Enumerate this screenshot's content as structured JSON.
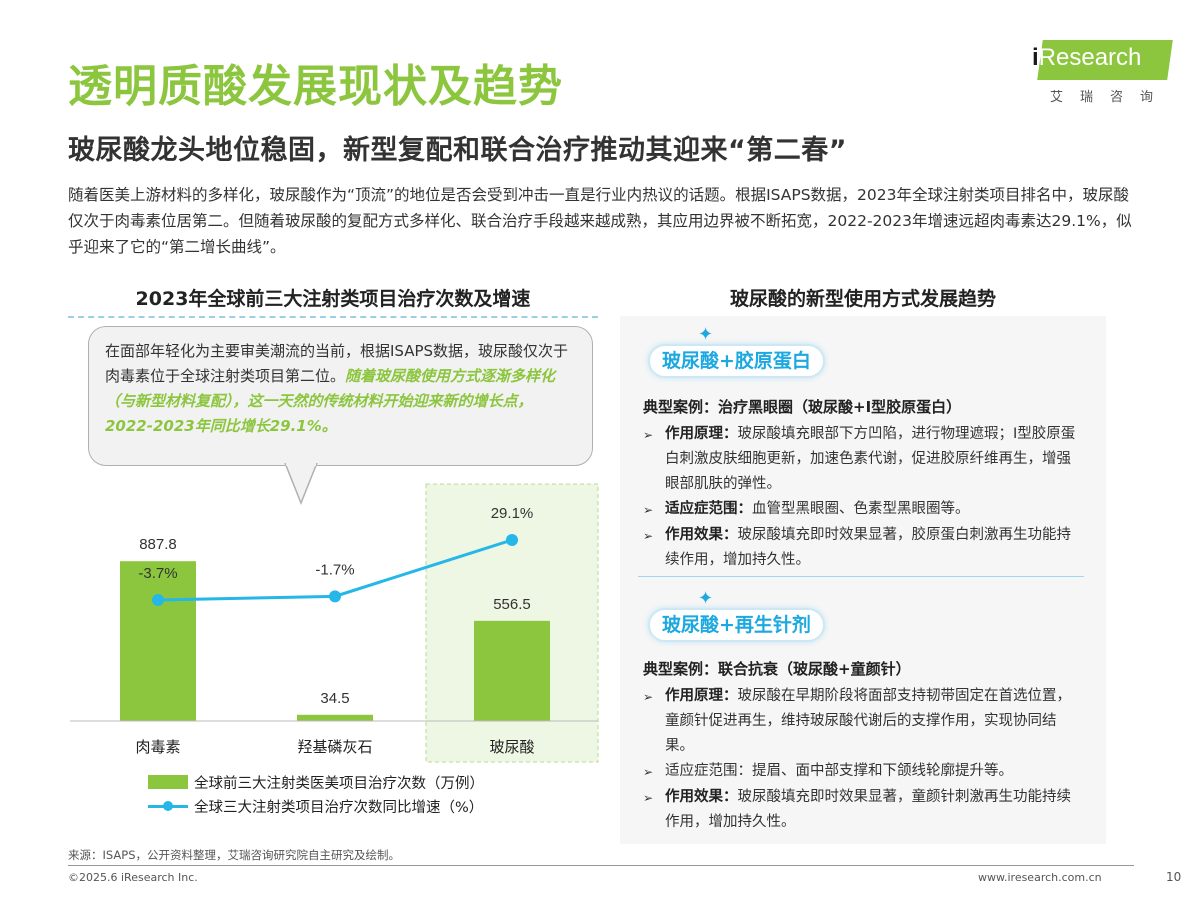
{
  "header": {
    "title": "透明质酸发展现状及趋势",
    "subtitle": "玻尿酸龙头地位稳固，新型复配和联合治疗推动其迎来“第二春”",
    "intro": "随着医美上游材料的多样化，玻尿酸作为“顶流”的地位是否会受到冲击一直是行业内热议的话题。根据ISAPS数据，2023年全球注射类项目排名中，玻尿酸仅次于肉毒素位居第二。但随着玻尿酸的复配方式多样化、联合治疗手段越来越成熟，其应用边界被不断拓宽，2022-2023年增速远超肉毒素达29.1%，似乎迎来了它的“第二增长曲线”。"
  },
  "logo": {
    "brand_i": "i",
    "brand_rest": "Research",
    "brand_cn": "艾瑞咨询"
  },
  "callout": {
    "normal": "在面部年轻化为主要审美潮流的当前，根据ISAPS数据，玻尿酸仅次于肉毒素位于全球注射类项目第二位。",
    "emphasis": "随着玻尿酸使用方式逐渐多样化（与新型材料复配），这一天然的传统材料开始迎来新的增长点，2022-2023年同比增长29.1%。"
  },
  "chart_data": {
    "type": "bar",
    "title": "2023年全球前三大注射类项目治疗次数及增速",
    "categories": [
      "肉毒素",
      "羟基磷灰石",
      "玻尿酸"
    ],
    "series": [
      {
        "name": "全球前三大注射类医美项目治疗次数（万例）",
        "type": "bar",
        "values": [
          887.8,
          34.5,
          556.5
        ],
        "labels": [
          "887.8",
          "34.5",
          "556.5"
        ]
      },
      {
        "name": "全球三大注射类项目治疗次数同比增速（%）",
        "type": "line",
        "values": [
          -3.7,
          -1.7,
          29.1
        ],
        "labels": [
          "-3.7%",
          "-1.7%",
          "29.1%"
        ]
      }
    ],
    "highlighted_category": "玻尿酸",
    "legend_position": "bottom",
    "grid": false,
    "colors": {
      "bar": "#8cc63f",
      "line": "#24b7e8",
      "highlight_bg": "#eef6e4"
    }
  },
  "right_panel": {
    "title": "玻尿酸的新型使用方式发展趋势",
    "sections": [
      {
        "pill": "玻尿酸+胶原蛋白",
        "case": "典型案例：治疗黑眼圈（玻尿酸+I型胶原蛋白）",
        "bullets": [
          {
            "label": "作用原理：",
            "text": "玻尿酸填充眼部下方凹陷，进行物理遮瑕；I型胶原蛋白刺激皮肤细胞更新，加速色素代谢，促进胶原纤维再生，增强眼部肌肤的弹性。"
          },
          {
            "label": "适应症范围：",
            "text": "血管型黑眼圈、色素型黑眼圈等。"
          },
          {
            "label": "作用效果：",
            "text": "玻尿酸填充即时效果显著，胶原蛋白刺激再生功能持续作用，增加持久性。"
          }
        ]
      },
      {
        "pill": "玻尿酸+再生针剂",
        "case": "典型案例：联合抗衰（玻尿酸+童颜针）",
        "bullets": [
          {
            "label": "作用原理：",
            "text": "玻尿酸在早期阶段将面部支持韧带固定在首选位置，童颜针促进再生，维持玻尿酸代谢后的支撑作用，实现协同结果。"
          },
          {
            "label": "",
            "text": "适应症范围：提眉、面中部支撑和下颌线轮廓提升等。"
          },
          {
            "label": "作用效果：",
            "text": "玻尿酸填充即时效果显著，童颜针刺激再生功能持续作用，增加持久性。"
          }
        ]
      }
    ]
  },
  "footer": {
    "source": "来源：ISAPS，公开资料整理，艾瑞咨询研究院自主研究及绘制。",
    "copyright": "©2025.6 iResearch Inc.",
    "website": "www.iresearch.com.cn",
    "page": "10"
  }
}
